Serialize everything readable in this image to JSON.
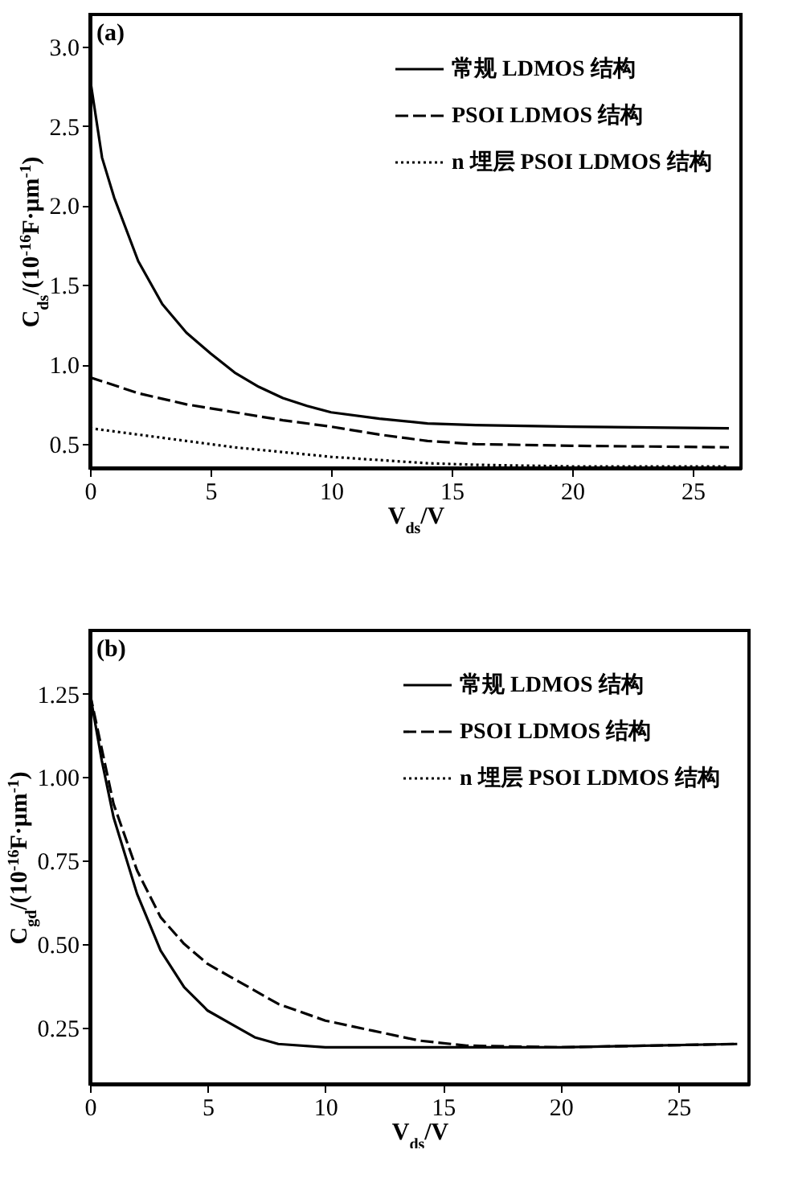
{
  "chart_data": [
    {
      "type": "line",
      "annotations": [
        "(a)"
      ],
      "xlabel": "V$_{ds}$/V",
      "ylabel": "C$_{ds}$/(10$^{-16}$F·μm$^{-1}$)",
      "xlim": [
        0,
        27
      ],
      "ylim": [
        0.35,
        3.2
      ],
      "xticks": [
        0,
        5,
        10,
        15,
        20,
        25
      ],
      "yticks": [
        0.5,
        {
          "value": 1,
          "label": "1.0"
        },
        1.5,
        {
          "value": 2,
          "label": "2.0"
        },
        2.5,
        {
          "value": 3,
          "label": "3.0"
        }
      ],
      "legend": "top right",
      "grid": false,
      "series": [
        {
          "name": "常规 LDMOS 结构",
          "color": "#000000",
          "line_style": "solid",
          "x": [
            0,
            0.5,
            1,
            2,
            3,
            4,
            5,
            6,
            7,
            8,
            9,
            10,
            12,
            14,
            16,
            20,
            26.5
          ],
          "values": [
            2.8,
            2.3,
            2.05,
            1.65,
            1.38,
            1.2,
            1.07,
            0.95,
            0.86,
            0.79,
            0.74,
            0.7,
            0.66,
            0.63,
            0.62,
            0.61,
            0.6
          ]
        },
        {
          "name": "PSOI LDMOS 结构",
          "color": "#000000",
          "line_style": "dashed",
          "x": [
            0,
            2,
            4,
            6,
            8,
            10,
            12,
            14,
            16,
            20,
            26.5
          ],
          "values": [
            0.92,
            0.82,
            0.75,
            0.7,
            0.65,
            0.61,
            0.56,
            0.52,
            0.5,
            0.49,
            0.48
          ]
        },
        {
          "name": "n 埋层 PSOI LDMOS 结构",
          "color": "#000000",
          "line_style": "dotted",
          "x": [
            0,
            2,
            4,
            6,
            8,
            10,
            12,
            14,
            16,
            20,
            26.5
          ],
          "values": [
            0.6,
            0.56,
            0.52,
            0.48,
            0.45,
            0.42,
            0.4,
            0.38,
            0.37,
            0.36,
            0.36
          ]
        }
      ]
    },
    {
      "type": "line",
      "annotations": [
        "(b)"
      ],
      "xlabel": "V$_{ds}$/V",
      "ylabel": "C$_{gd}$/(10$^{-16}$F·μm$^{-1}$)",
      "xlim": [
        0,
        28
      ],
      "ylim": [
        0.08,
        1.44
      ],
      "xticks": [
        0,
        5,
        10,
        15,
        20,
        25
      ],
      "yticks": [
        0.25,
        {
          "value": 0.5,
          "label": "0.50"
        },
        0.75,
        {
          "value": 1,
          "label": "1.00"
        },
        1.25
      ],
      "legend": "top right",
      "grid": false,
      "series": [
        {
          "name": "常规 LDMOS 结构",
          "color": "#000000",
          "line_style": "solid",
          "x": [
            0,
            0.5,
            1,
            2,
            3,
            4,
            5,
            6,
            7,
            8,
            10,
            15,
            20,
            27.5
          ],
          "values": [
            1.25,
            1.05,
            0.88,
            0.65,
            0.48,
            0.37,
            0.3,
            0.26,
            0.22,
            0.2,
            0.19,
            0.19,
            0.19,
            0.2
          ]
        },
        {
          "name": "PSOI LDMOS 结构",
          "color": "#000000",
          "line_style": "dashed",
          "x": [
            0,
            1,
            2,
            3,
            4,
            5,
            6,
            7,
            8,
            10,
            12,
            14,
            16,
            20,
            27.5
          ],
          "values": [
            1.25,
            0.92,
            0.72,
            0.58,
            0.5,
            0.44,
            0.4,
            0.36,
            0.32,
            0.27,
            0.24,
            0.21,
            0.195,
            0.19,
            0.2
          ]
        },
        {
          "name": "n 埋层 PSOI LDMOS 结构",
          "color": "#000000",
          "line_style": "dotted"
        }
      ]
    }
  ]
}
